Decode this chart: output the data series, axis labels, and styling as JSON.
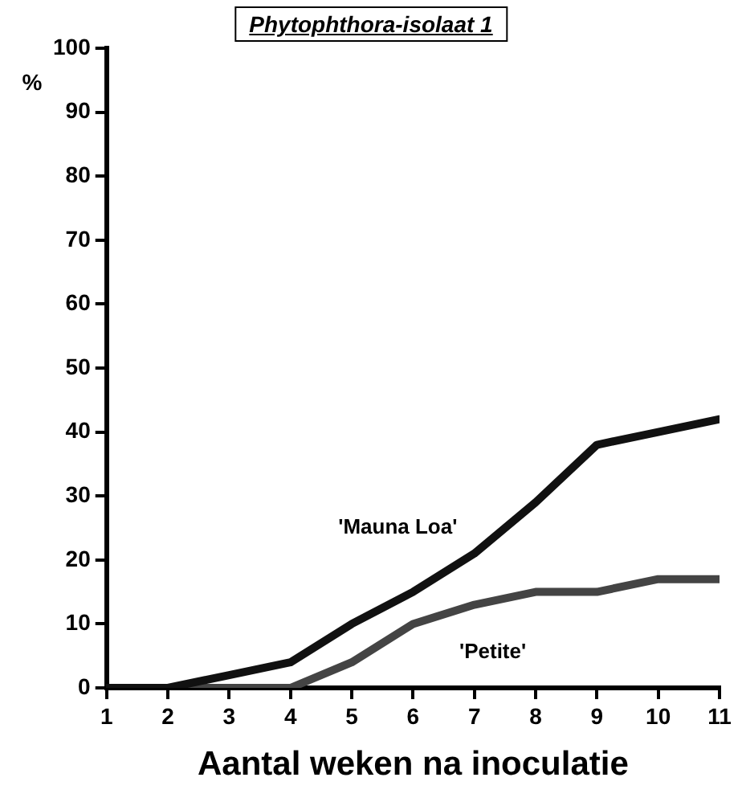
{
  "chart_data": {
    "type": "line",
    "title": "Phytophthora-isolaat 1",
    "xlabel": "Aantal weken na inoculatie",
    "ylabel": "%",
    "x": [
      1,
      2,
      3,
      4,
      5,
      6,
      7,
      8,
      9,
      10,
      11
    ],
    "series": [
      {
        "name": "'Mauna Loa'",
        "color": "#111111",
        "values": [
          0,
          0,
          2,
          4,
          10,
          15,
          21,
          29,
          38,
          40,
          42
        ]
      },
      {
        "name": "'Petite'",
        "color": "#444444",
        "values": [
          0,
          0,
          0,
          0,
          4,
          10,
          13,
          15,
          15,
          17,
          17
        ]
      }
    ],
    "xlim": [
      1,
      11
    ],
    "xticks": [
      1,
      2,
      3,
      4,
      5,
      6,
      7,
      8,
      9,
      10,
      11
    ],
    "ylim": [
      0,
      100
    ],
    "yticks": [
      0,
      10,
      20,
      30,
      40,
      50,
      60,
      70,
      80,
      90,
      100
    ],
    "grid": false,
    "legend": false,
    "marker": "none",
    "line_style": "solid"
  }
}
